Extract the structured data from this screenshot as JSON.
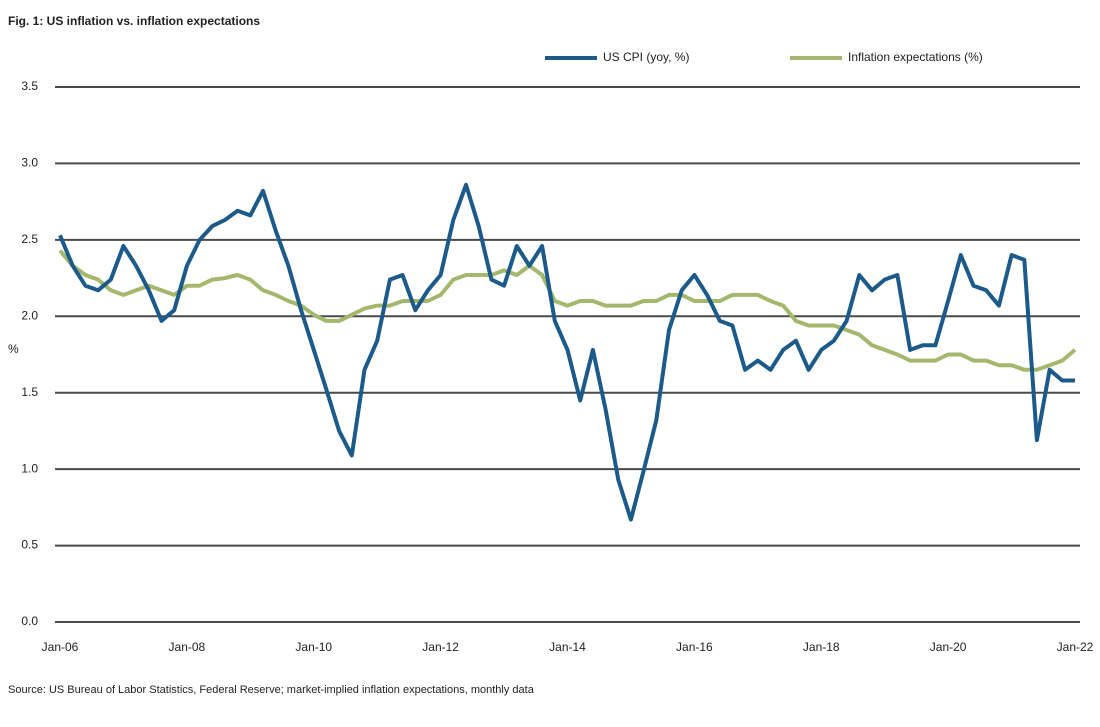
{
  "chart_data": {
    "type": "line",
    "title": "Fig. 1: US inflation vs. inflation expectations",
    "y_label": "%",
    "source": "Source: US Bureau of Labor Statistics, Federal Reserve; market-implied inflation expectations, monthly data",
    "categories": [
      "Jan-06",
      null,
      null,
      null,
      null,
      null,
      null,
      null,
      null,
      null,
      "Jan-08",
      null,
      null,
      null,
      null,
      null,
      null,
      null,
      null,
      null,
      "Jan-10",
      null,
      null,
      null,
      null,
      null,
      null,
      null,
      null,
      null,
      "Jan-12",
      null,
      null,
      null,
      null,
      null,
      null,
      null,
      null,
      null,
      "Jan-14",
      null,
      null,
      null,
      null,
      null,
      null,
      null,
      null,
      null,
      "Jan-16",
      null,
      null,
      null,
      null,
      null,
      null,
      null,
      null,
      null,
      "Jan-18",
      null,
      null,
      null,
      null,
      null,
      null,
      null,
      null,
      null,
      "Jan-20",
      null,
      null,
      null,
      null,
      null,
      null,
      null,
      null,
      null,
      "Jan-22"
    ],
    "series": [
      {
        "name": "US CPI (yoy, %)",
        "color": "#1c5a8a",
        "values": [
          2.53,
          2.33,
          2.2,
          2.17,
          2.24,
          2.46,
          2.33,
          2.17,
          1.97,
          2.04,
          2.33,
          2.5,
          2.59,
          2.63,
          2.69,
          2.66,
          2.82,
          2.56,
          2.33,
          2.04,
          1.78,
          1.52,
          1.25,
          1.09,
          1.65,
          1.84,
          2.24,
          2.27,
          2.04,
          2.17,
          2.27,
          2.63,
          2.86,
          2.59,
          2.24,
          2.2,
          2.46,
          2.33,
          2.46,
          1.97,
          1.78,
          1.45,
          1.78,
          1.39,
          0.93,
          0.67,
          0.99,
          1.32,
          1.91,
          2.17,
          2.27,
          2.14,
          1.97,
          1.94,
          1.65,
          1.71,
          1.65,
          1.78,
          1.84,
          1.65,
          1.78,
          1.84,
          1.97,
          2.27,
          2.17,
          2.24,
          2.27,
          1.78,
          1.81,
          1.81,
          2.1,
          2.4,
          2.2,
          2.17,
          2.07,
          2.4,
          2.37,
          1.19,
          1.65,
          1.58,
          1.58
        ]
      },
      {
        "name": "Inflation expectations (%)",
        "color": "#a3b86c",
        "values": [
          2.43,
          2.33,
          2.27,
          2.24,
          2.17,
          2.14,
          2.17,
          2.2,
          2.17,
          2.14,
          2.2,
          2.2,
          2.24,
          2.25,
          2.27,
          2.24,
          2.17,
          2.14,
          2.1,
          2.07,
          2.01,
          1.97,
          1.97,
          2.01,
          2.05,
          2.07,
          2.07,
          2.1,
          2.1,
          2.1,
          2.14,
          2.24,
          2.27,
          2.27,
          2.27,
          2.3,
          2.27,
          2.33,
          2.27,
          2.1,
          2.07,
          2.1,
          2.1,
          2.07,
          2.07,
          2.07,
          2.1,
          2.1,
          2.14,
          2.14,
          2.1,
          2.1,
          2.1,
          2.14,
          2.14,
          2.14,
          2.1,
          2.07,
          1.97,
          1.94,
          1.94,
          1.94,
          1.91,
          1.88,
          1.81,
          1.78,
          1.75,
          1.71,
          1.71,
          1.71,
          1.75,
          1.75,
          1.71,
          1.71,
          1.68,
          1.68,
          1.65,
          1.65,
          1.68,
          1.71,
          1.78
        ]
      }
    ],
    "ylim": [
      0,
      3.5
    ],
    "yticks": [
      {
        "value": 0,
        "label": "0.0"
      },
      0.5,
      {
        "value": 1,
        "label": "1.0"
      },
      1.5,
      {
        "value": 2,
        "label": "2.0"
      },
      2.5,
      {
        "value": 3,
        "label": "3.0"
      },
      3.5
    ],
    "grid": true,
    "legend": "top-right"
  }
}
